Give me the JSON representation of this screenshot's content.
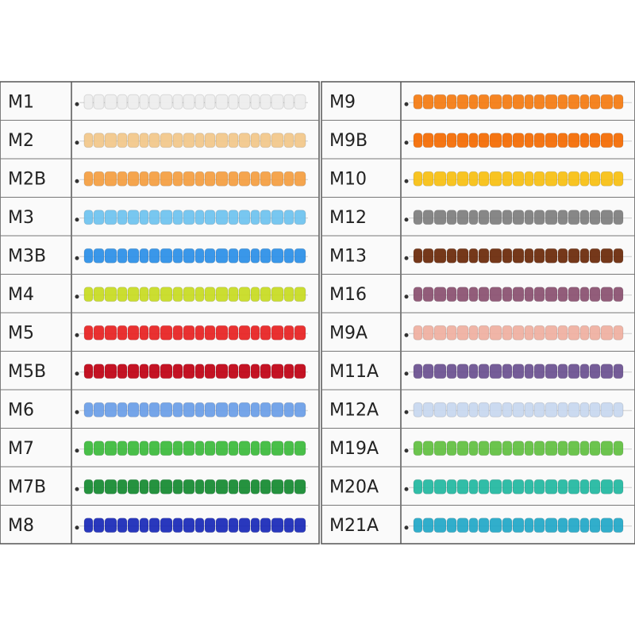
{
  "left": [
    {
      "label": "M1",
      "color": "#eeeeee"
    },
    {
      "label": "M2",
      "color": "#f3c88a"
    },
    {
      "label": "M2B",
      "color": "#f59e40"
    },
    {
      "label": "M3",
      "color": "#6ec3f0"
    },
    {
      "label": "M3B",
      "color": "#2a8fe8"
    },
    {
      "label": "M4",
      "color": "#c8dc20"
    },
    {
      "label": "M5",
      "color": "#e82020"
    },
    {
      "label": "M5B",
      "color": "#c00012"
    },
    {
      "label": "M6",
      "color": "#6a9ee8"
    },
    {
      "label": "M7",
      "color": "#3aba3a"
    },
    {
      "label": "M7B",
      "color": "#138a30"
    },
    {
      "label": "M8",
      "color": "#1828b8"
    }
  ],
  "right": [
    {
      "label": "M9",
      "color": "#f57a10"
    },
    {
      "label": "M9B",
      "color": "#f56a00"
    },
    {
      "label": "M10",
      "color": "#f8c010"
    },
    {
      "label": "M12",
      "color": "#7e7e7e"
    },
    {
      "label": "M13",
      "color": "#6a2808"
    },
    {
      "label": "M16",
      "color": "#8a5070"
    },
    {
      "label": "M9A",
      "color": "#f0b0a0"
    },
    {
      "label": "M11A",
      "color": "#6a5090"
    },
    {
      "label": "M12A",
      "color": "#c8d8f0"
    },
    {
      "label": "M19A",
      "color": "#60c040"
    },
    {
      "label": "M20A",
      "color": "#20b8a0"
    },
    {
      "label": "M21A",
      "color": "#20a8c8"
    }
  ]
}
